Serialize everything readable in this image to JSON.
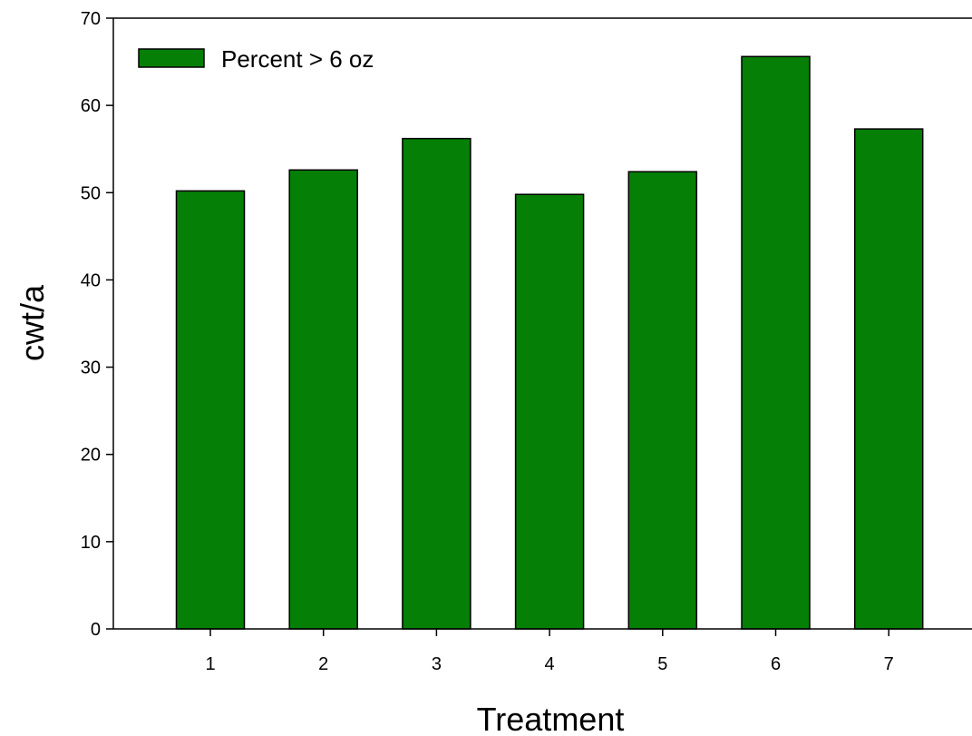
{
  "chart_data": {
    "type": "bar",
    "title": "",
    "xlabel": "Treatment",
    "ylabel": "cwt/a",
    "categories": [
      "1",
      "2",
      "3",
      "4",
      "5",
      "6",
      "7"
    ],
    "series": [
      {
        "name": "Percent > 6 oz",
        "values": [
          50.2,
          52.6,
          56.2,
          49.8,
          52.4,
          65.6,
          57.3
        ]
      }
    ],
    "ylim": [
      0,
      70
    ],
    "yticks": [
      "0",
      "10",
      "20",
      "30",
      "40",
      "50",
      "60",
      "70"
    ],
    "grid": false,
    "legend_position": "top-left",
    "colors": {
      "bar_fill": "#057f05",
      "bar_stroke": "#000000",
      "axis": "#000000"
    }
  }
}
